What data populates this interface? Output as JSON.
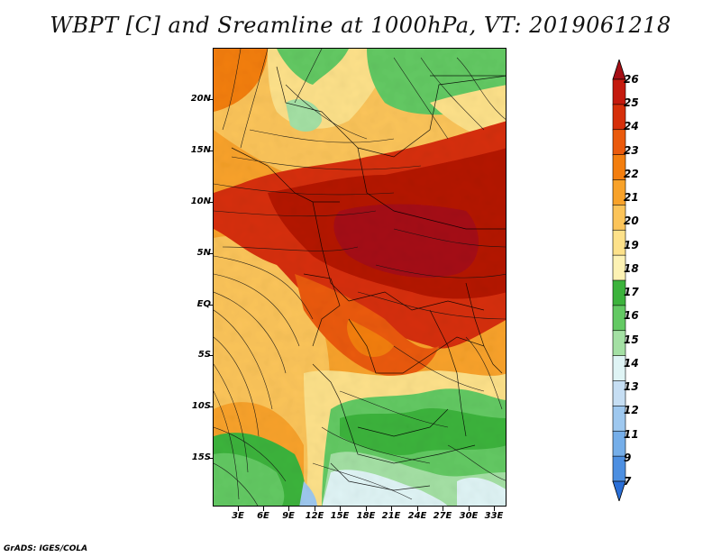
{
  "title": "WBPT [C] and Sreamline at 1000hPa, VT: 2019061218",
  "credit": "GrADS: IGES/COLA",
  "lat_labels": [
    "20N",
    "15N",
    "10N",
    "5N",
    "EQ",
    "5S",
    "10S",
    "15S"
  ],
  "lon_labels": [
    "3E",
    "6E",
    "9E",
    "12E",
    "15E",
    "18E",
    "21E",
    "24E",
    "27E",
    "30E",
    "33E"
  ],
  "colorbar": {
    "labels": [
      "26",
      "25",
      "24",
      "23",
      "22",
      "21",
      "20",
      "19",
      "18",
      "17",
      "16",
      "15",
      "14",
      "13",
      "12",
      "11",
      "9",
      "7"
    ],
    "colors": [
      "#a50f15",
      "#c41a0e",
      "#d62f0a",
      "#ea5a0c",
      "#f37e0e",
      "#f8a22a",
      "#fbc45a",
      "#fde18a",
      "#fdf2b4",
      "#3cb33c",
      "#63c963",
      "#a4e0a4",
      "#dff4f5",
      "#c6def3",
      "#9ec8ef",
      "#75aee9",
      "#4d8fe1",
      "#2a6fd8"
    ]
  },
  "legend_values_note": "",
  "map_fields": {
    "hot_color": "#b41406",
    "warm_color": "#f0a030",
    "mild_color": "#fbd27e",
    "cool_green": "#4cbb4c",
    "pale_green": "#9fdc9f",
    "cold_blue": "#bfe3f3"
  }
}
